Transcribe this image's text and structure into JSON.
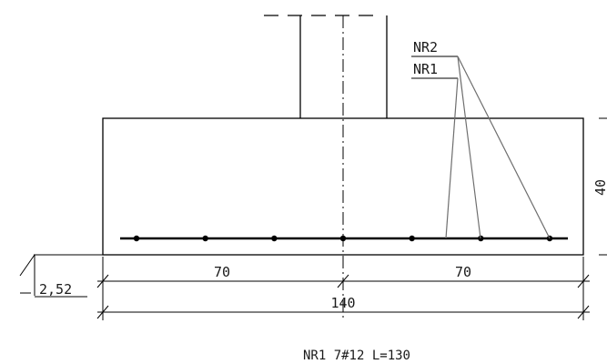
{
  "drawing": {
    "labels": {
      "nr2": "NR2",
      "nr1": "NR1",
      "height": "40",
      "level": "2,52",
      "dim_left": "70",
      "dim_right": "70",
      "dim_total": "140",
      "bar_note": "NR1 7#12 L=130"
    },
    "rebar_dot_count": 7
  }
}
